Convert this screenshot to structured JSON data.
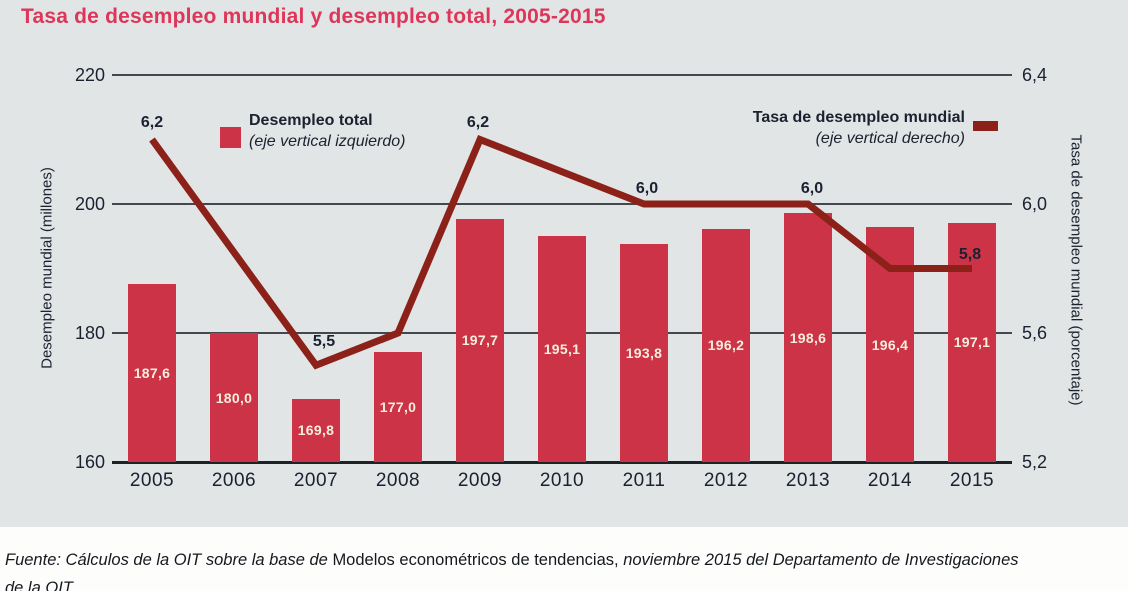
{
  "title": "Tasa de desempleo mundial y desempleo total, 2005-2015",
  "legend": {
    "bars": {
      "label": "Desempleo total",
      "sublabel": "(eje vertical izquierdo)"
    },
    "line": {
      "label": "Tasa de desempleo mundial",
      "sublabel": "(eje vertical derecho)"
    }
  },
  "left_axis": {
    "label": "Desempleo mundial (millones)",
    "ticks": [
      "220",
      "200",
      "180",
      "160"
    ]
  },
  "right_axis": {
    "label": "Tasa de desempleo mundial (porcentaje)",
    "ticks": [
      "6,4",
      "6,0",
      "5,6",
      "5,2"
    ]
  },
  "colors": {
    "bar": "#cc3347",
    "line": "#8b2118",
    "title": "#de3659",
    "text": "#1a2130",
    "bar_label": "#f7eedd",
    "grid": "#43484e",
    "panel_bg": "#e2e5e6"
  },
  "chart_data": {
    "type": "bar",
    "categories": [
      "2005",
      "2006",
      "2007",
      "2008",
      "2009",
      "2010",
      "2011",
      "2012",
      "2013",
      "2014",
      "2015"
    ],
    "title": "Tasa de desempleo mundial y desempleo total, 2005-2015",
    "left_ylabel": "Desempleo mundial (millones)",
    "right_ylabel": "Tasa de desempleo mundial (porcentaje)",
    "left_ylim": [
      160,
      220
    ],
    "right_ylim": [
      5.2,
      6.4
    ],
    "grid": "horizontal",
    "legend_position": "top-inside",
    "series": [
      {
        "name": "Desempleo total (eje vertical izquierdo)",
        "type": "bar",
        "axis": "left",
        "values": [
          187.6,
          180.0,
          169.8,
          177.0,
          197.7,
          195.1,
          193.8,
          196.2,
          198.6,
          196.4,
          197.1
        ],
        "value_labels": [
          "187,6",
          "180,0",
          "169,8",
          "177,0",
          "197,7",
          "195,1",
          "193,8",
          "196,2",
          "198,6",
          "196,4",
          "197,1"
        ]
      },
      {
        "name": "Tasa de desempleo mundial (eje vertical derecho)",
        "type": "line",
        "axis": "right",
        "values": [
          6.2,
          5.85,
          5.5,
          5.6,
          6.2,
          6.1,
          6.0,
          6.0,
          6.0,
          5.8,
          5.8
        ],
        "labeled_points": [
          {
            "index": 0,
            "label": "6,2"
          },
          {
            "index": 2,
            "label": "5,5"
          },
          {
            "index": 4,
            "label": "6,2"
          },
          {
            "index": 6,
            "label": "6,0"
          },
          {
            "index": 8,
            "label": "6,0"
          },
          {
            "index": 10,
            "label": "5,8"
          }
        ]
      }
    ]
  },
  "source": {
    "segments": [
      {
        "text": "Fuente: Cálculos de la OIT sobre la base de ",
        "style": "italic"
      },
      {
        "text": "Modelos econométricos de tendencias, ",
        "style": "regular"
      },
      {
        "text": "noviembre 2015 del Departamento de Investigaciones",
        "style": "italic"
      }
    ],
    "line2": "de la OIT"
  }
}
